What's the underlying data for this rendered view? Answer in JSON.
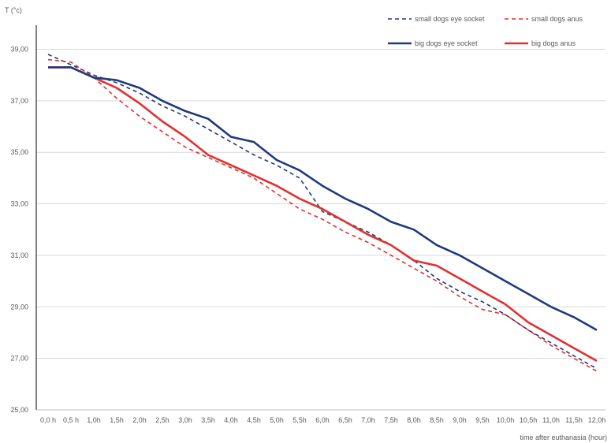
{
  "chart_data": {
    "type": "line",
    "title": "",
    "ylabel": "T (°c)",
    "xlabel": "time after euthanasia (hour)",
    "ylim": [
      25,
      40
    ],
    "yticks": [
      25,
      27,
      29,
      31,
      33,
      35,
      37,
      39
    ],
    "ytick_labels": [
      "25,00",
      "27,00",
      "29,00",
      "31,00",
      "33,00",
      "35,00",
      "37,00",
      "39,00"
    ],
    "grid": true,
    "legend_position": "top-right",
    "categories": [
      "0,0 h",
      "0,5 h",
      "1,0h",
      "1,5h",
      "2,0h",
      "2,5h",
      "3,0h",
      "3,5h",
      "4,0h",
      "4,5h",
      "5,0h",
      "5,5h",
      "6,0h",
      "6,5h",
      "7,0h",
      "7,5h",
      "8,0h",
      "8,5h",
      "9,0h",
      "9,5h",
      "10,0h",
      "10,5h",
      "11,0h",
      "11,5h",
      "12,0h"
    ],
    "series": [
      {
        "name": "small dogs eye socket",
        "color": "#1f3a7a",
        "dash": true,
        "values": [
          38.8,
          38.4,
          38.0,
          37.7,
          37.3,
          36.8,
          36.4,
          35.9,
          35.4,
          34.9,
          34.5,
          34.0,
          32.7,
          32.3,
          31.9,
          31.4,
          30.8,
          30.1,
          29.6,
          29.2,
          28.7,
          28.1,
          27.6,
          27.1,
          26.6
        ]
      },
      {
        "name": "small dogs anus",
        "color": "#e03030",
        "dash": true,
        "values": [
          38.6,
          38.5,
          37.9,
          37.1,
          36.4,
          35.8,
          35.2,
          34.8,
          34.4,
          34.0,
          33.4,
          32.8,
          32.4,
          31.9,
          31.5,
          31.0,
          30.5,
          30.0,
          29.4,
          28.9,
          28.7,
          28.1,
          27.5,
          27.0,
          26.5
        ]
      },
      {
        "name": "big dogs eye socket",
        "color": "#1f3a7a",
        "dash": false,
        "values": [
          38.3,
          38.3,
          37.9,
          37.8,
          37.5,
          37.0,
          36.6,
          36.3,
          35.6,
          35.4,
          34.7,
          34.3,
          33.7,
          33.2,
          32.8,
          32.3,
          32.0,
          31.4,
          31.0,
          30.5,
          30.0,
          29.5,
          29.0,
          28.6,
          28.1
        ]
      },
      {
        "name": "big dogs anus",
        "color": "#e03030",
        "dash": false,
        "values": [
          38.3,
          38.3,
          37.9,
          37.5,
          36.9,
          36.2,
          35.6,
          34.9,
          34.5,
          34.1,
          33.7,
          33.2,
          32.8,
          32.3,
          31.8,
          31.4,
          30.8,
          30.6,
          30.1,
          29.6,
          29.1,
          28.4,
          27.9,
          27.4,
          26.9
        ]
      }
    ]
  }
}
